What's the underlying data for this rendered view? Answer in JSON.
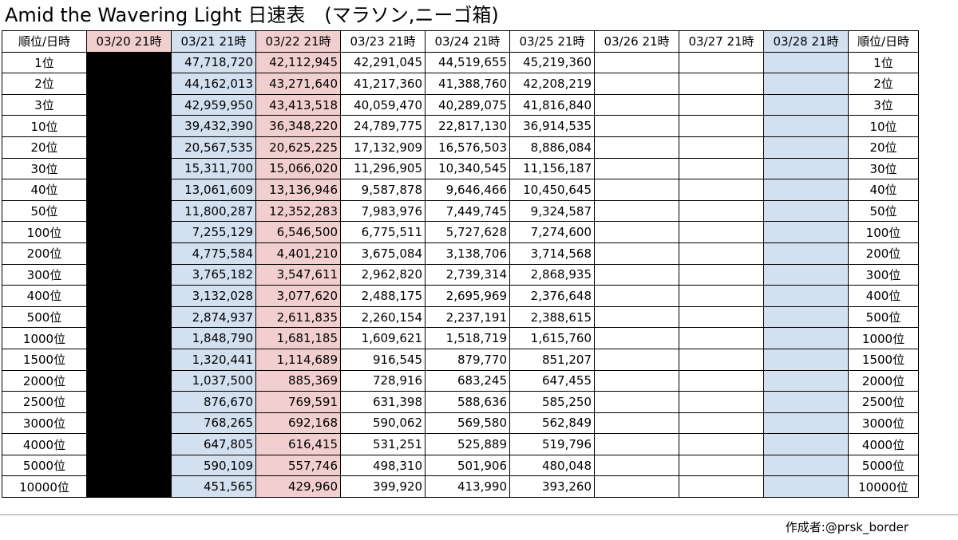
{
  "title": "Amid the Wavering Light 日速表　(マラソン,ニーゴ箱)",
  "headers": [
    "順位/日時",
    "03/20 21時",
    "03/21 21時",
    "03/22 21時",
    "03/23 21時",
    "03/24 21時",
    "03/25 21時",
    "03/26 21時",
    "03/27 21時",
    "03/28 21時",
    "順位/日時"
  ],
  "rows": [
    {
      "rank": "1位",
      "values": [
        "",
        "47,718,720",
        "42,112,945",
        "42,291,045",
        "44,519,655",
        "45,219,360",
        "",
        "",
        ""
      ]
    },
    {
      "rank": "2位",
      "values": [
        "",
        "44,162,013",
        "43,271,640",
        "41,217,360",
        "41,388,760",
        "42,208,219",
        "",
        "",
        ""
      ]
    },
    {
      "rank": "3位",
      "values": [
        "",
        "42,959,950",
        "43,413,518",
        "40,059,470",
        "40,289,075",
        "41,816,840",
        "",
        "",
        ""
      ]
    },
    {
      "rank": "10位",
      "values": [
        "",
        "39,432,390",
        "36,348,220",
        "24,789,775",
        "22,817,130",
        "36,914,535",
        "",
        "",
        ""
      ]
    },
    {
      "rank": "20位",
      "values": [
        "",
        "20,567,535",
        "20,625,225",
        "17,132,909",
        "16,576,503",
        "8,886,084",
        "",
        "",
        ""
      ]
    },
    {
      "rank": "30位",
      "values": [
        "",
        "15,311,700",
        "15,066,020",
        "11,296,905",
        "10,340,545",
        "11,156,187",
        "",
        "",
        ""
      ]
    },
    {
      "rank": "40位",
      "values": [
        "",
        "13,061,609",
        "13,136,946",
        "9,587,878",
        "9,646,466",
        "10,450,645",
        "",
        "",
        ""
      ]
    },
    {
      "rank": "50位",
      "values": [
        "",
        "11,800,287",
        "12,352,283",
        "7,983,976",
        "7,449,745",
        "9,324,587",
        "",
        "",
        ""
      ]
    },
    {
      "rank": "100位",
      "values": [
        "",
        "7,255,129",
        "6,546,500",
        "6,775,511",
        "5,727,628",
        "7,274,600",
        "",
        "",
        ""
      ]
    },
    {
      "rank": "200位",
      "values": [
        "",
        "4,775,584",
        "4,401,210",
        "3,675,084",
        "3,138,706",
        "3,714,568",
        "",
        "",
        ""
      ]
    },
    {
      "rank": "300位",
      "values": [
        "",
        "3,765,182",
        "3,547,611",
        "2,962,820",
        "2,739,314",
        "2,868,935",
        "",
        "",
        ""
      ]
    },
    {
      "rank": "400位",
      "values": [
        "",
        "3,132,028",
        "3,077,620",
        "2,488,175",
        "2,695,969",
        "2,376,648",
        "",
        "",
        ""
      ]
    },
    {
      "rank": "500位",
      "values": [
        "",
        "2,874,937",
        "2,611,835",
        "2,260,154",
        "2,237,191",
        "2,388,615",
        "",
        "",
        ""
      ]
    },
    {
      "rank": "1000位",
      "values": [
        "",
        "1,848,790",
        "1,681,185",
        "1,609,621",
        "1,518,719",
        "1,615,760",
        "",
        "",
        ""
      ]
    },
    {
      "rank": "1500位",
      "values": [
        "",
        "1,320,441",
        "1,114,689",
        "916,545",
        "879,770",
        "851,207",
        "",
        "",
        ""
      ]
    },
    {
      "rank": "2000位",
      "values": [
        "",
        "1,037,500",
        "885,369",
        "728,916",
        "683,245",
        "647,455",
        "",
        "",
        ""
      ]
    },
    {
      "rank": "2500位",
      "values": [
        "",
        "876,670",
        "769,591",
        "631,398",
        "588,636",
        "585,250",
        "",
        "",
        ""
      ]
    },
    {
      "rank": "3000位",
      "values": [
        "",
        "768,265",
        "692,168",
        "590,062",
        "569,580",
        "562,849",
        "",
        "",
        ""
      ]
    },
    {
      "rank": "4000位",
      "values": [
        "",
        "647,805",
        "616,415",
        "531,251",
        "525,889",
        "519,796",
        "",
        "",
        ""
      ]
    },
    {
      "rank": "5000位",
      "values": [
        "",
        "590,109",
        "557,746",
        "498,310",
        "501,906",
        "480,048",
        "",
        "",
        ""
      ]
    },
    {
      "rank": "10000位",
      "values": [
        "",
        "451,565",
        "429,960",
        "399,920",
        "413,990",
        "393,260",
        "",
        "",
        ""
      ]
    }
  ],
  "credit": "作成者:@prsk_border",
  "colors": {
    "blacked_out": "#000000",
    "blue": "#d3e0f0",
    "pink": "#f2cfcf"
  }
}
